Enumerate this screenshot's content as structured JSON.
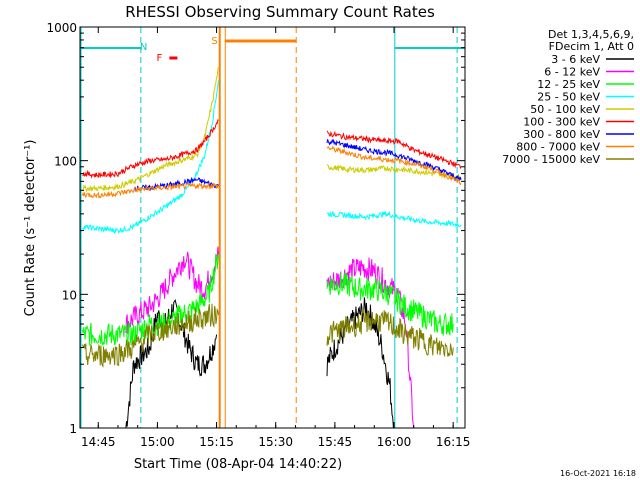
{
  "chart_data": {
    "type": "line",
    "title": "RHESSI Observing Summary Count Rates",
    "xlabel": "Start Time (08-Apr-04 14:40:22)",
    "ylabel": "Count Rate (s⁻¹ detector⁻¹)",
    "yscale": "log",
    "ylim": [
      1,
      1000
    ],
    "xlim_minutes": [
      40.37,
      138.0
    ],
    "x_ticks": [
      {
        "t": 45,
        "label": "14:45"
      },
      {
        "t": 60,
        "label": "15:00"
      },
      {
        "t": 75,
        "label": "15:15"
      },
      {
        "t": 90,
        "label": "15:30"
      },
      {
        "t": 105,
        "label": "15:45"
      },
      {
        "t": 120,
        "label": "16:00"
      },
      {
        "t": 135,
        "label": "16:15"
      }
    ],
    "y_ticks": [
      {
        "v": 1,
        "label": "1"
      },
      {
        "v": 10,
        "label": "10"
      },
      {
        "v": 100,
        "label": "100"
      },
      {
        "v": 1000,
        "label": "1000"
      }
    ],
    "legend_header": [
      "Det 1,3,4,5,6,9,",
      "FDecim 1, Att 0"
    ],
    "legend_position": "right",
    "timestamp": "16-Oct-2021 16:18",
    "series": [
      {
        "name": "3 - 6 keV",
        "color": "#000000",
        "t": [
          52,
          54,
          58,
          60,
          62,
          64,
          66,
          68,
          70,
          72,
          74,
          75,
          103,
          105,
          107,
          109,
          111,
          113,
          115,
          117,
          119,
          120
        ],
        "values": [
          1,
          3,
          4,
          7,
          6,
          8,
          6,
          4,
          3,
          3,
          4,
          5,
          3,
          4,
          5,
          6,
          7,
          8,
          6,
          4,
          2,
          1
        ]
      },
      {
        "name": "6 - 12 keV",
        "color": "#ff00ff",
        "t": [
          52,
          55,
          58,
          61,
          64,
          67,
          70,
          72,
          74,
          75.5,
          103,
          106,
          109,
          112,
          115,
          118,
          121,
          123,
          125
        ],
        "values": [
          6,
          7,
          8,
          10,
          14,
          19,
          12,
          11,
          15,
          20,
          12,
          13,
          15,
          16,
          15,
          12,
          10,
          6,
          1
        ]
      },
      {
        "name": "12 - 25 keV",
        "color": "#00ff00",
        "t": [
          41,
          45,
          50,
          54,
          58,
          62,
          66,
          70,
          73,
          75.5,
          103,
          107,
          111,
          115,
          119,
          123,
          127,
          131,
          135
        ],
        "values": [
          5,
          5,
          5,
          5,
          6,
          6,
          7,
          8,
          10,
          20,
          12,
          12,
          11,
          11,
          10,
          8,
          7,
          6,
          6
        ]
      },
      {
        "name": "25 - 50 keV",
        "color": "#00ffff",
        "t": [
          41,
          45,
          50,
          54,
          58,
          62,
          66,
          69,
          72,
          74,
          75.5,
          103,
          108,
          113,
          118,
          123,
          128,
          133,
          137
        ],
        "values": [
          32,
          31,
          30,
          32,
          38,
          45,
          55,
          70,
          110,
          200,
          400,
          40,
          39,
          38,
          40,
          37,
          35,
          34,
          33
        ]
      },
      {
        "name": "50 - 100 keV",
        "color": "#cccc00",
        "t": [
          41,
          45,
          50,
          54,
          58,
          62,
          66,
          70,
          72,
          74,
          75.5,
          103,
          108,
          113,
          118,
          123,
          128,
          133,
          137
        ],
        "values": [
          62,
          62,
          64,
          70,
          80,
          92,
          100,
          110,
          150,
          280,
          500,
          90,
          86,
          85,
          88,
          85,
          82,
          78,
          75
        ]
      },
      {
        "name": "100 - 300 keV",
        "color": "#ff0000",
        "t": [
          41,
          45,
          50,
          54,
          58,
          62,
          66,
          70,
          72,
          74,
          75.5,
          103,
          108,
          113,
          118,
          121,
          125,
          129,
          133,
          137
        ],
        "values": [
          80,
          78,
          80,
          92,
          100,
          102,
          110,
          120,
          140,
          170,
          200,
          160,
          150,
          145,
          140,
          140,
          120,
          110,
          100,
          90
        ]
      },
      {
        "name": "300 - 800 keV",
        "color": "#0000ff",
        "t": [
          54,
          58,
          62,
          66,
          70,
          74,
          75.5,
          103,
          108,
          113,
          118,
          121,
          125,
          129,
          133,
          137
        ],
        "values": [
          62,
          63,
          65,
          68,
          72,
          66,
          65,
          140,
          130,
          120,
          115,
          110,
          100,
          92,
          82,
          72
        ]
      },
      {
        "name": "800 - 7000 keV",
        "color": "#ff8000",
        "t": [
          41,
          45,
          50,
          54,
          58,
          62,
          66,
          70,
          74,
          75.5,
          103,
          108,
          113,
          118,
          121,
          125,
          129,
          133,
          137
        ],
        "values": [
          56,
          55,
          57,
          60,
          62,
          63,
          64,
          65,
          65,
          64,
          125,
          115,
          105,
          102,
          100,
          95,
          88,
          78,
          68
        ]
      },
      {
        "name": "7000 - 15000 keV",
        "color": "#808000",
        "t": [
          41,
          45,
          50,
          54,
          58,
          62,
          66,
          70,
          74,
          75.5,
          103,
          107,
          111,
          115,
          119,
          123,
          127,
          131,
          135
        ],
        "values": [
          3.5,
          3.5,
          3.6,
          4,
          5,
          5.5,
          6,
          6.5,
          7,
          7,
          5,
          5.5,
          6,
          6.5,
          6,
          5,
          4.5,
          4,
          4
        ]
      }
    ],
    "annotations": [
      {
        "label": "N",
        "t": 56.5,
        "color": "#00cccc"
      },
      {
        "label": "F",
        "t": 60.5,
        "color": "#ff0000"
      },
      {
        "label": "S",
        "t": 74.5,
        "color": "#ff8000"
      }
    ]
  }
}
